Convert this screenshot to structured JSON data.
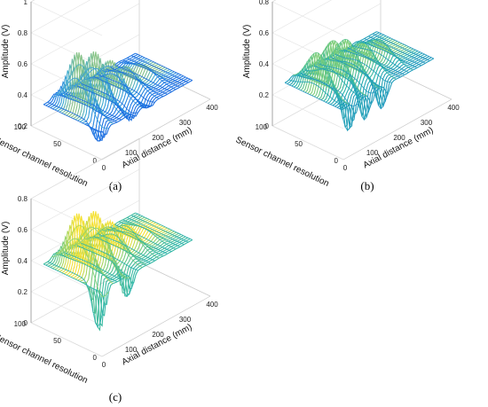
{
  "chart_data": [
    {
      "type": "surface",
      "panel_label": "(a)",
      "xlabel": "Axial distance (mm)",
      "ylabel": "Sensor channel resolution",
      "zlabel": "Amplitude (V)",
      "xlim": [
        0,
        400
      ],
      "ylim": [
        0,
        100
      ],
      "zlim": [
        0.2,
        1
      ],
      "x_ticks": [
        "0",
        "100",
        "200",
        "300",
        "400"
      ],
      "y_ticks": [
        "0",
        "50",
        "100"
      ],
      "z_ticks": [
        "0.2",
        "0.4",
        "0.6",
        "0.8",
        "1"
      ],
      "baseline": 0.34,
      "peaks": [
        {
          "x": 60,
          "amp": 0.72
        },
        {
          "x": 120,
          "amp": 0.66
        },
        {
          "x": 180,
          "amp": 0.55
        },
        {
          "x": 240,
          "amp": 0.45
        },
        {
          "x": 300,
          "amp": 0.4
        }
      ],
      "valleys": [
        {
          "x": 40,
          "amp": 0.22
        },
        {
          "x": 150,
          "amp": 0.26
        },
        {
          "x": 210,
          "amp": 0.28
        }
      ],
      "colormap": "parula-blue"
    },
    {
      "type": "surface",
      "panel_label": "(b)",
      "xlabel": "Axial distance (mm)",
      "ylabel": "Sensor channel resolution",
      "zlabel": "Amplitude (V)",
      "xlim": [
        0,
        400
      ],
      "ylim": [
        0,
        100
      ],
      "zlim": [
        0,
        0.8
      ],
      "x_ticks": [
        "0",
        "100",
        "200",
        "300",
        "400"
      ],
      "y_ticks": [
        "0",
        "50",
        "100"
      ],
      "z_ticks": [
        "0",
        "0.2",
        "0.4",
        "0.6",
        "0.8"
      ],
      "baseline": 0.28,
      "peaks": [
        {
          "x": 50,
          "amp": 0.52
        },
        {
          "x": 110,
          "amp": 0.55
        },
        {
          "x": 160,
          "amp": 0.5
        },
        {
          "x": 220,
          "amp": 0.42
        },
        {
          "x": 280,
          "amp": 0.38
        }
      ],
      "valleys": [
        {
          "x": 70,
          "amp": 0.05
        },
        {
          "x": 130,
          "amp": 0.08
        },
        {
          "x": 190,
          "amp": 0.1
        }
      ],
      "colormap": "parula-green"
    },
    {
      "type": "surface",
      "panel_label": "(c)",
      "xlabel": "Axial distance (mm)",
      "ylabel": "Sensor channel resolution",
      "zlabel": "Amplitude (V)",
      "xlim": [
        0,
        400
      ],
      "ylim": [
        0,
        100
      ],
      "zlim": [
        0,
        0.8
      ],
      "x_ticks": [
        "0",
        "100",
        "200",
        "300",
        "400"
      ],
      "y_ticks": [
        "0",
        "50",
        "100"
      ],
      "z_ticks": [
        "0",
        "0.2",
        "0.4",
        "0.6",
        "0.8"
      ],
      "baseline": 0.38,
      "peaks": [
        {
          "x": 60,
          "amp": 0.75
        },
        {
          "x": 120,
          "amp": 0.7
        },
        {
          "x": 180,
          "amp": 0.58
        },
        {
          "x": 240,
          "amp": 0.5
        },
        {
          "x": 300,
          "amp": 0.42
        }
      ],
      "valleys": [
        {
          "x": 40,
          "amp": 0.05
        },
        {
          "x": 140,
          "amp": 0.18
        }
      ],
      "colormap": "parula-green"
    }
  ]
}
